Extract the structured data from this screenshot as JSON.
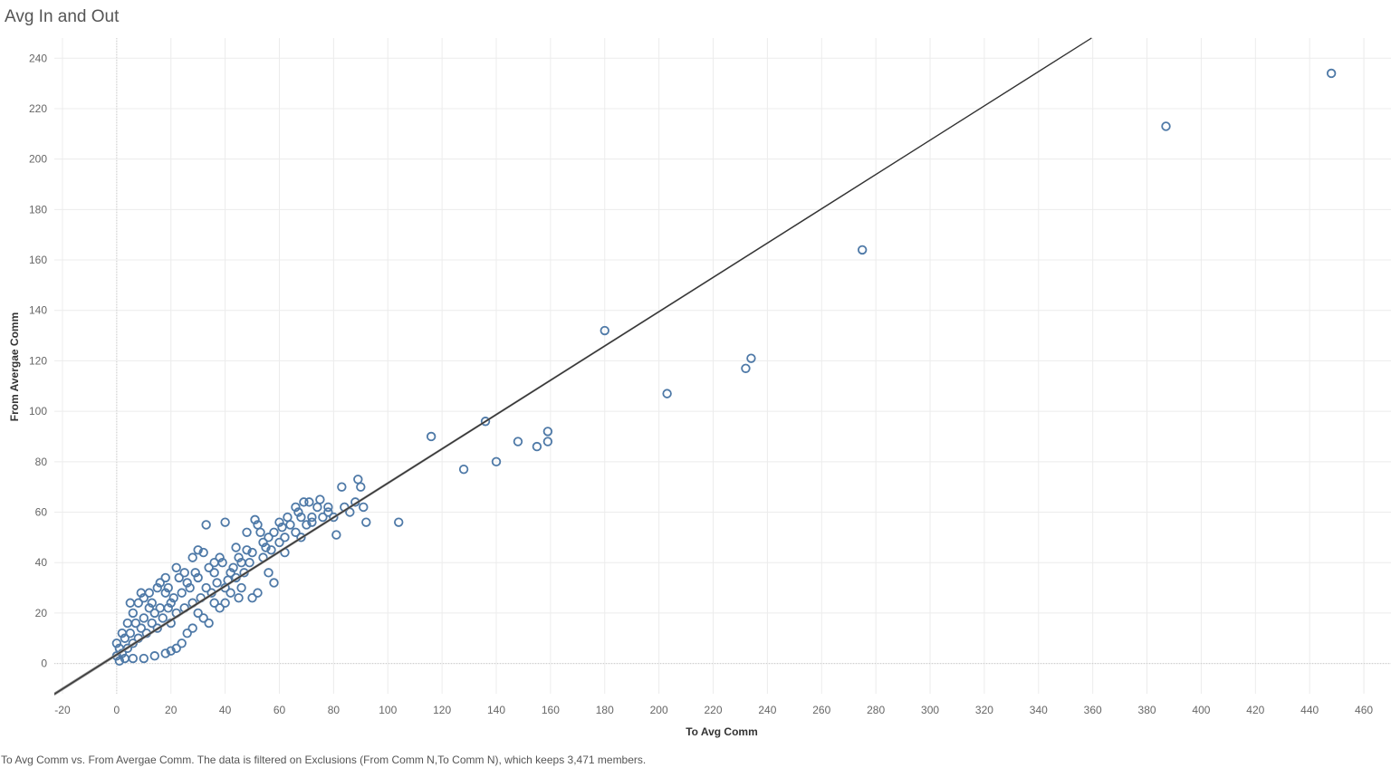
{
  "title": "Avg In and Out",
  "caption": "To Avg Comm vs. From Avergae Comm. The data is filtered on Exclusions (From Comm N,To Comm N), which keeps 3,471 members.",
  "colors": {
    "point": "#4e79a7",
    "trend": "#333333",
    "band": "#888888",
    "grid": "#ececec",
    "zero_line": "#cccccc"
  },
  "chart_data": {
    "type": "scatter",
    "title": "Avg In and Out",
    "xlabel": "To Avg Comm",
    "ylabel": "From Avergae Comm",
    "xlim": [
      -23,
      470
    ],
    "ylim": [
      -12,
      248
    ],
    "xticks": [
      -20,
      0,
      20,
      40,
      60,
      80,
      100,
      120,
      140,
      160,
      180,
      200,
      220,
      240,
      260,
      280,
      300,
      320,
      340,
      360,
      380,
      400,
      420,
      440,
      460
    ],
    "yticks": [
      0,
      20,
      40,
      60,
      80,
      100,
      120,
      140,
      160,
      180,
      200,
      220,
      240
    ],
    "grid": true,
    "marker": "open-circle",
    "trend_line": {
      "slope": 0.68,
      "intercept": 3.5
    },
    "points": [
      [
        448,
        234
      ],
      [
        387,
        213
      ],
      [
        275,
        164
      ],
      [
        234,
        121
      ],
      [
        232,
        117
      ],
      [
        203,
        107
      ],
      [
        180,
        132
      ],
      [
        159,
        92
      ],
      [
        159,
        88
      ],
      [
        155,
        86
      ],
      [
        148,
        88
      ],
      [
        140,
        80
      ],
      [
        136,
        96
      ],
      [
        128,
        77
      ],
      [
        116,
        90
      ],
      [
        104,
        56
      ],
      [
        92,
        56
      ],
      [
        91,
        62
      ],
      [
        90,
        70
      ],
      [
        89,
        73
      ],
      [
        88,
        64
      ],
      [
        86,
        60
      ],
      [
        84,
        62
      ],
      [
        83,
        70
      ],
      [
        81,
        51
      ],
      [
        80,
        58
      ],
      [
        78,
        60
      ],
      [
        76,
        58
      ],
      [
        75,
        65
      ],
      [
        74,
        62
      ],
      [
        72,
        56
      ],
      [
        71,
        64
      ],
      [
        70,
        55
      ],
      [
        69,
        64
      ],
      [
        68,
        58
      ],
      [
        67,
        60
      ],
      [
        66,
        52
      ],
      [
        64,
        55
      ],
      [
        63,
        58
      ],
      [
        62,
        50
      ],
      [
        61,
        54
      ],
      [
        60,
        48
      ],
      [
        58,
        52
      ],
      [
        57,
        45
      ],
      [
        56,
        50
      ],
      [
        55,
        46
      ],
      [
        54,
        42
      ],
      [
        53,
        52
      ],
      [
        52,
        55
      ],
      [
        51,
        57
      ],
      [
        50,
        44
      ],
      [
        49,
        40
      ],
      [
        48,
        45
      ],
      [
        47,
        36
      ],
      [
        46,
        40
      ],
      [
        45,
        42
      ],
      [
        44,
        34
      ],
      [
        43,
        38
      ],
      [
        42,
        36
      ],
      [
        41,
        33
      ],
      [
        40,
        56
      ],
      [
        40,
        30
      ],
      [
        39,
        40
      ],
      [
        38,
        42
      ],
      [
        37,
        32
      ],
      [
        36,
        36
      ],
      [
        35,
        28
      ],
      [
        34,
        38
      ],
      [
        33,
        55
      ],
      [
        33,
        30
      ],
      [
        32,
        44
      ],
      [
        31,
        26
      ],
      [
        30,
        34
      ],
      [
        29,
        36
      ],
      [
        28,
        24
      ],
      [
        27,
        30
      ],
      [
        26,
        32
      ],
      [
        25,
        22
      ],
      [
        24,
        28
      ],
      [
        23,
        34
      ],
      [
        22,
        20
      ],
      [
        21,
        26
      ],
      [
        20,
        24
      ],
      [
        20,
        16
      ],
      [
        19,
        22
      ],
      [
        18,
        28
      ],
      [
        17,
        18
      ],
      [
        16,
        22
      ],
      [
        15,
        14
      ],
      [
        14,
        20
      ],
      [
        13,
        16
      ],
      [
        12,
        22
      ],
      [
        11,
        12
      ],
      [
        10,
        18
      ],
      [
        9,
        14
      ],
      [
        8,
        10
      ],
      [
        7,
        16
      ],
      [
        6,
        8
      ],
      [
        5,
        12
      ],
      [
        4,
        6
      ],
      [
        3,
        10
      ],
      [
        2,
        4
      ],
      [
        1,
        6
      ],
      [
        0,
        3
      ],
      [
        0,
        8
      ],
      [
        52,
        28
      ],
      [
        50,
        26
      ],
      [
        58,
        32
      ],
      [
        68,
        50
      ],
      [
        56,
        36
      ],
      [
        45,
        26
      ],
      [
        38,
        22
      ],
      [
        40,
        24
      ],
      [
        62,
        44
      ],
      [
        26,
        12
      ],
      [
        24,
        8
      ],
      [
        22,
        6
      ],
      [
        20,
        5
      ],
      [
        18,
        4
      ],
      [
        14,
        3
      ],
      [
        10,
        2
      ],
      [
        6,
        2
      ],
      [
        3,
        2
      ],
      [
        1,
        1
      ],
      [
        8,
        24
      ],
      [
        10,
        26
      ],
      [
        12,
        28
      ],
      [
        16,
        32
      ],
      [
        18,
        34
      ],
      [
        22,
        38
      ],
      [
        28,
        42
      ],
      [
        30,
        45
      ],
      [
        36,
        40
      ],
      [
        44,
        46
      ],
      [
        48,
        52
      ],
      [
        54,
        48
      ],
      [
        60,
        56
      ],
      [
        66,
        62
      ],
      [
        72,
        58
      ],
      [
        78,
        62
      ],
      [
        34,
        16
      ],
      [
        42,
        28
      ],
      [
        46,
        30
      ],
      [
        30,
        20
      ],
      [
        32,
        18
      ],
      [
        28,
        14
      ],
      [
        36,
        24
      ],
      [
        6,
        20
      ],
      [
        4,
        16
      ],
      [
        2,
        12
      ],
      [
        5,
        24
      ],
      [
        9,
        28
      ],
      [
        13,
        24
      ],
      [
        15,
        30
      ],
      [
        19,
        30
      ],
      [
        25,
        36
      ]
    ]
  }
}
